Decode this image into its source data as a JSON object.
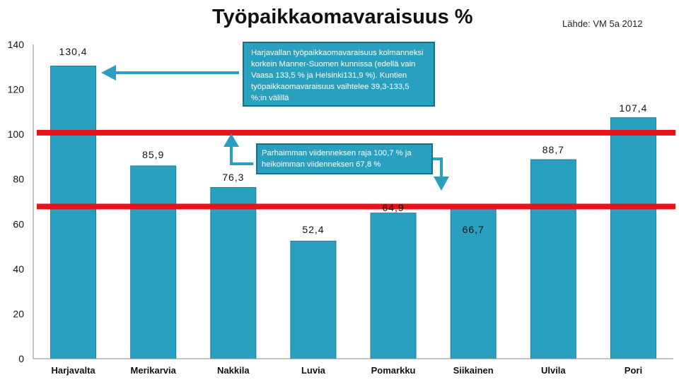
{
  "chart_data": {
    "type": "bar",
    "title": "Työpaikkaomavaraisuus %",
    "source": "Lähde: VM 5a 2012",
    "xlabel": "",
    "ylabel": "",
    "ylim": [
      0,
      140
    ],
    "yticks": [
      0,
      20,
      40,
      60,
      80,
      100,
      120,
      140
    ],
    "grid": false,
    "categories": [
      "Harjavalta",
      "Merikarvia",
      "Nakkila",
      "Luvia",
      "Pomarkku",
      "Siikainen",
      "Ulvila",
      "Pori"
    ],
    "values": [
      130.4,
      85.9,
      76.3,
      52.4,
      64.9,
      66.7,
      88.7,
      107.4
    ],
    "value_labels": [
      "130,4",
      "85,9",
      "76,3",
      "52,4",
      "64,9",
      "66,7",
      "88,7",
      "107,4"
    ],
    "reference_lines": [
      100.7,
      67.8
    ],
    "annotations": {
      "top_note": "Harjavallan työpaikkaomavaraisuus kolmanneksi korkein Manner-Suomen kunnissa (edellä vain Vaasa 133,5 % ja Helsinki131,9 %). Kuntien työpaikkaomavaraisuus vaihtelee 39,3-133,5 %;in välillä",
      "quintile_note": "Parhaimman viidenneksen raja 100,7 % ja heikoimman viidenneksen 67,8 %"
    }
  },
  "colors": {
    "bar": "#2aa0c0",
    "bar_edge": "#1b7f9c",
    "reference_line": "#e8121c",
    "arrow": "#2aa0c0",
    "axis": "#888888"
  }
}
